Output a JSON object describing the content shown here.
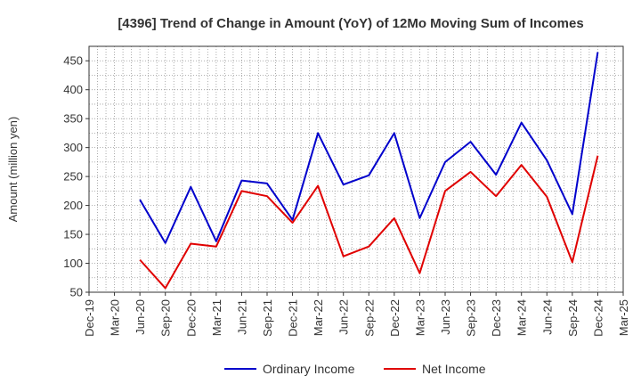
{
  "chart_data": {
    "type": "line",
    "title": "[4396]  Trend of Change in Amount (YoY) of 12Mo Moving Sum of Incomes",
    "ylabel": "Amount (million yen)",
    "xlabel": "",
    "ylim": [
      50,
      475
    ],
    "yticks": [
      50,
      100,
      150,
      200,
      250,
      300,
      350,
      400,
      450
    ],
    "grid": true,
    "legend_position": "bottom",
    "categories": [
      "Dec-19",
      "Mar-20",
      "Jun-20",
      "Sep-20",
      "Dec-20",
      "Mar-21",
      "Jun-21",
      "Sep-21",
      "Dec-21",
      "Mar-22",
      "Jun-22",
      "Sep-22",
      "Dec-22",
      "Mar-23",
      "Jun-23",
      "Sep-23",
      "Dec-23",
      "Mar-24",
      "Jun-24",
      "Sep-24",
      "Dec-24",
      "Mar-25"
    ],
    "series": [
      {
        "name": "Ordinary Income",
        "color": "#0000cc",
        "values": [
          null,
          null,
          210,
          135,
          232,
          138,
          243,
          238,
          175,
          325,
          236,
          252,
          325,
          178,
          275,
          310,
          253,
          343,
          278,
          185,
          465,
          null
        ]
      },
      {
        "name": "Net Income",
        "color": "#e00000",
        "values": [
          null,
          null,
          106,
          57,
          134,
          129,
          225,
          216,
          170,
          234,
          112,
          129,
          178,
          83,
          225,
          258,
          216,
          270,
          215,
          102,
          286,
          null
        ]
      }
    ]
  }
}
